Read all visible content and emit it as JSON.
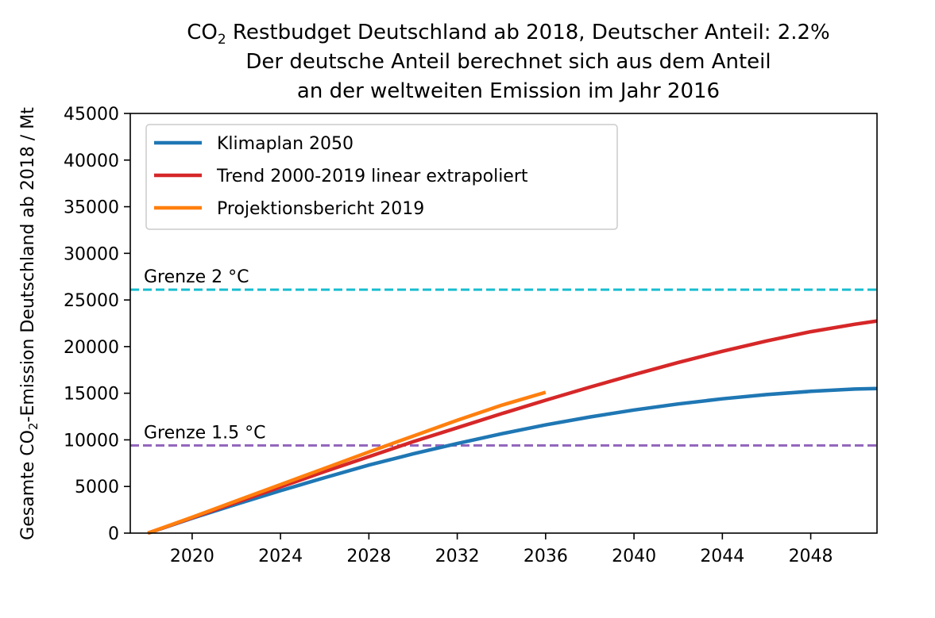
{
  "chart_data": {
    "type": "line",
    "title": {
      "line1_prefix": "CO",
      "line1_sub": "2",
      "line1_suffix": " Restbudget Deutschland ab 2018, Deutscher Anteil: 2.2%",
      "line2": "Der deutsche Anteil berechnet sich aus dem Anteil",
      "line3": "an der weltweiten Emission im Jahr 2016"
    },
    "ylabel": {
      "prefix": "Gesamte CO",
      "sub": "2",
      "suffix": "-Emission Deutschland ab 2018 / Mt"
    },
    "xlabel": "",
    "xlim": [
      2017.2,
      2051.0
    ],
    "ylim": [
      0,
      45000
    ],
    "xticks": [
      2020,
      2024,
      2028,
      2032,
      2036,
      2040,
      2044,
      2048
    ],
    "yticks": [
      0,
      5000,
      10000,
      15000,
      20000,
      25000,
      30000,
      35000,
      40000,
      45000
    ],
    "grid": false,
    "legend_placement": "top-left",
    "series": [
      {
        "name": "Klimaplan 2050",
        "color": "#1f77b4",
        "x": [
          2018,
          2020,
          2022,
          2024,
          2026,
          2028,
          2030,
          2032,
          2034,
          2036,
          2038,
          2040,
          2042,
          2044,
          2046,
          2048,
          2050,
          2051
        ],
        "y": [
          0,
          1600,
          3100,
          4550,
          5950,
          7300,
          8500,
          9600,
          10650,
          11600,
          12450,
          13200,
          13850,
          14400,
          14850,
          15200,
          15450,
          15500
        ]
      },
      {
        "name": "Trend 2000-2019 linear extrapoliert",
        "color": "#d62728",
        "x": [
          2018,
          2020,
          2022,
          2024,
          2026,
          2028,
          2030,
          2032,
          2034,
          2036,
          2038,
          2040,
          2042,
          2044,
          2046,
          2048,
          2050,
          2051
        ],
        "y": [
          0,
          1650,
          3300,
          4950,
          6600,
          8200,
          9800,
          11300,
          12800,
          14250,
          15650,
          17000,
          18300,
          19500,
          20600,
          21600,
          22400,
          22750
        ]
      },
      {
        "name": "Projektionsbericht 2019",
        "color": "#ff7f0e",
        "x": [
          2018,
          2020,
          2022,
          2024,
          2026,
          2028,
          2030,
          2032,
          2034,
          2036
        ],
        "y": [
          0,
          1700,
          3450,
          5200,
          6950,
          8700,
          10400,
          12100,
          13700,
          15100
        ]
      }
    ],
    "hlines": [
      {
        "label": "Grenze 2 °C",
        "y": 26100,
        "color": "#17becf"
      },
      {
        "label": "Grenze 1.5 °C",
        "y": 9400,
        "color": "#9467bd"
      }
    ]
  }
}
